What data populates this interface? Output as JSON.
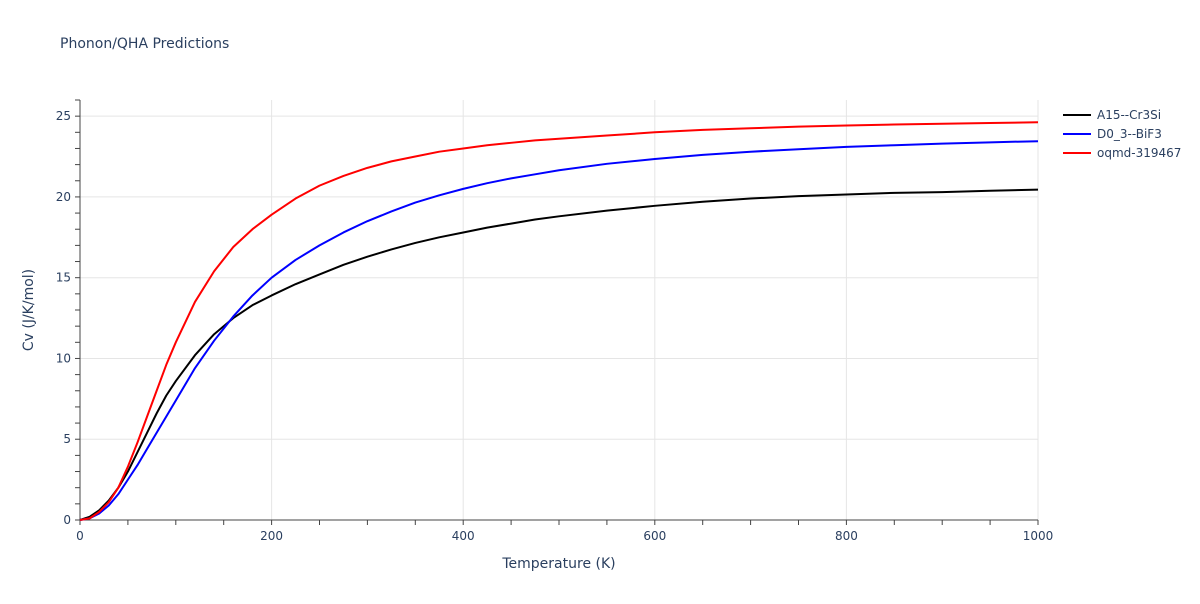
{
  "chart_data": {
    "type": "line",
    "title": "Phonon/QHA Predictions",
    "xlabel": "Temperature (K)",
    "ylabel": "Cv (J/K/mol)",
    "xlim": [
      0,
      1000
    ],
    "ylim": [
      0,
      26
    ],
    "x_ticks": [
      0,
      200,
      400,
      600,
      800,
      1000
    ],
    "y_ticks": [
      0,
      5,
      10,
      15,
      20,
      25
    ],
    "grid": true,
    "legend_position": "top-right",
    "series": [
      {
        "name": "A15--Cr3Si",
        "color": "#000000",
        "x": [
          0,
          10,
          20,
          30,
          40,
          50,
          60,
          70,
          80,
          90,
          100,
          120,
          140,
          160,
          180,
          200,
          225,
          250,
          275,
          300,
          325,
          350,
          375,
          400,
          425,
          450,
          475,
          500,
          550,
          600,
          650,
          700,
          750,
          800,
          850,
          900,
          950,
          1000
        ],
        "y": [
          0,
          0.2,
          0.6,
          1.2,
          2.0,
          3.0,
          4.2,
          5.4,
          6.6,
          7.7,
          8.6,
          10.2,
          11.5,
          12.5,
          13.3,
          13.9,
          14.6,
          15.2,
          15.8,
          16.3,
          16.75,
          17.15,
          17.5,
          17.8,
          18.1,
          18.35,
          18.6,
          18.8,
          19.15,
          19.45,
          19.7,
          19.9,
          20.05,
          20.15,
          20.25,
          20.3,
          20.38,
          20.45
        ]
      },
      {
        "name": "D0_3--BiF3",
        "color": "#0000ff",
        "x": [
          0,
          10,
          20,
          30,
          40,
          50,
          60,
          70,
          80,
          90,
          100,
          120,
          140,
          160,
          180,
          200,
          225,
          250,
          275,
          300,
          325,
          350,
          375,
          400,
          425,
          450,
          475,
          500,
          550,
          600,
          650,
          700,
          750,
          800,
          850,
          900,
          950,
          1000
        ],
        "y": [
          0,
          0.1,
          0.4,
          0.9,
          1.6,
          2.5,
          3.4,
          4.4,
          5.4,
          6.4,
          7.4,
          9.4,
          11.1,
          12.6,
          13.9,
          15.0,
          16.1,
          17.0,
          17.8,
          18.5,
          19.1,
          19.65,
          20.1,
          20.5,
          20.85,
          21.15,
          21.4,
          21.65,
          22.05,
          22.35,
          22.6,
          22.8,
          22.95,
          23.1,
          23.2,
          23.3,
          23.38,
          23.45
        ]
      },
      {
        "name": "oqmd-319467",
        "color": "#ff0000",
        "x": [
          0,
          10,
          20,
          30,
          40,
          50,
          60,
          70,
          80,
          90,
          100,
          120,
          140,
          160,
          180,
          200,
          225,
          250,
          275,
          300,
          325,
          350,
          375,
          400,
          425,
          450,
          475,
          500,
          550,
          600,
          650,
          700,
          750,
          800,
          850,
          900,
          950,
          1000
        ],
        "y": [
          0,
          0.1,
          0.5,
          1.1,
          2.0,
          3.3,
          4.8,
          6.4,
          8.0,
          9.6,
          11.0,
          13.5,
          15.4,
          16.9,
          18.0,
          18.9,
          19.9,
          20.7,
          21.3,
          21.8,
          22.2,
          22.5,
          22.8,
          23.0,
          23.2,
          23.35,
          23.5,
          23.6,
          23.8,
          24.0,
          24.15,
          24.25,
          24.35,
          24.42,
          24.48,
          24.53,
          24.58,
          24.62
        ]
      }
    ]
  }
}
